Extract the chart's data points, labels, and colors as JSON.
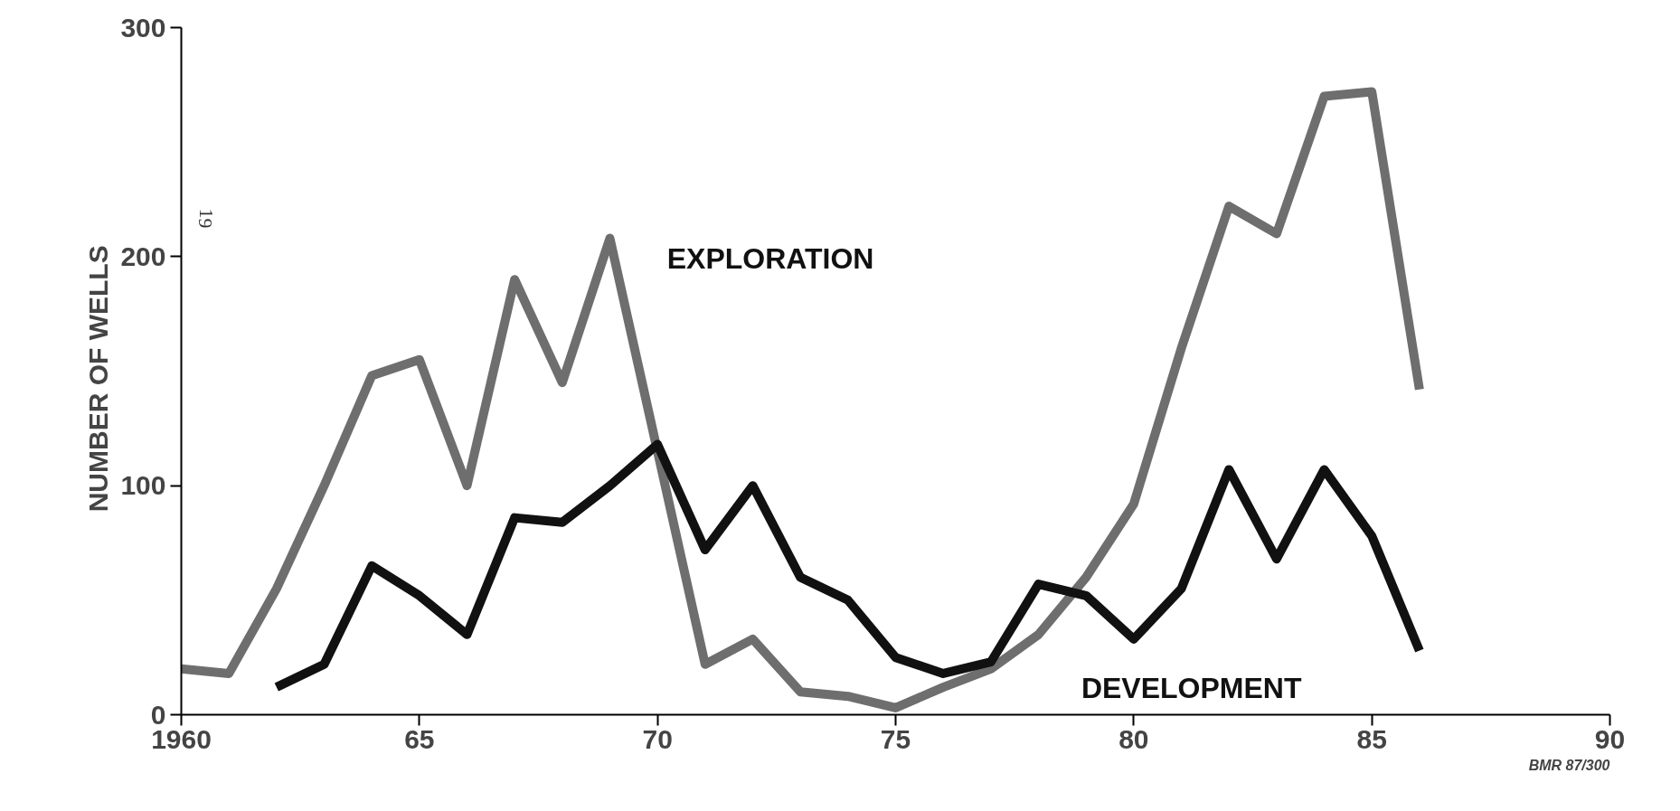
{
  "chart_data": {
    "type": "line",
    "ylabel": "NUMBER  OF  WELLS",
    "x": [
      1960,
      1961,
      1962,
      1963,
      1964,
      1965,
      1966,
      1967,
      1968,
      1969,
      1970,
      1971,
      1972,
      1973,
      1974,
      1975,
      1976,
      1977,
      1978,
      1979,
      1980,
      1981,
      1982,
      1983,
      1984,
      1985,
      1986
    ],
    "series": [
      {
        "name": "EXPLORATION",
        "color": "#6e6e6e",
        "values": [
          20,
          18,
          55,
          100,
          148,
          155,
          100,
          190,
          145,
          208,
          115,
          22,
          33,
          10,
          8,
          3,
          12,
          20,
          35,
          60,
          92,
          160,
          222,
          210,
          270,
          272,
          142
        ]
      },
      {
        "name": "DEVELOPMENT",
        "color": "#111111",
        "values": [
          null,
          null,
          12,
          22,
          65,
          52,
          35,
          86,
          84,
          100,
          118,
          72,
          100,
          60,
          50,
          25,
          18,
          23,
          57,
          52,
          33,
          55,
          107,
          68,
          107,
          78,
          28
        ]
      }
    ],
    "xlim": [
      1960,
      1990
    ],
    "xticks": [
      1960,
      {
        "value": 1965,
        "label": "65"
      },
      {
        "value": 1970,
        "label": "70"
      },
      {
        "value": 1975,
        "label": "75"
      },
      {
        "value": 1980,
        "label": "80"
      },
      {
        "value": 1985,
        "label": "85"
      },
      {
        "value": 1990,
        "label": "90"
      }
    ],
    "ylim": [
      0,
      300
    ],
    "yticks": [
      0,
      100,
      200,
      300
    ],
    "grid": false,
    "marker": "none",
    "line_style": "solid",
    "annotations": [
      "BMR 87/300",
      "19"
    ]
  }
}
